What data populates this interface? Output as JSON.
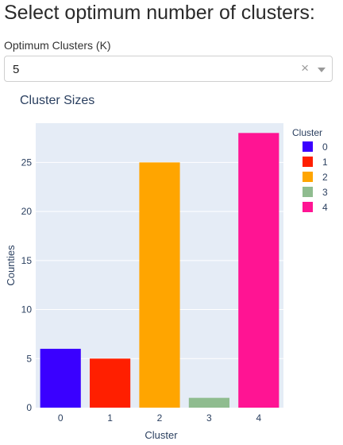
{
  "page": {
    "heading": "Select optimum number of clusters:"
  },
  "cluster_select": {
    "label": "Optimum Clusters (K)",
    "value": "5",
    "clear_glyph": "×"
  },
  "chart_data": {
    "type": "bar",
    "title": "Cluster Sizes",
    "xlabel": "Cluster",
    "ylabel": "Counties",
    "categories": [
      "0",
      "1",
      "2",
      "3",
      "4"
    ],
    "values": [
      6,
      5,
      25,
      1,
      28
    ],
    "colors": [
      "#3a00ff",
      "#ff1f00",
      "#ffa500",
      "#8fbc8f",
      "#ff1493"
    ],
    "yticks": [
      0,
      5,
      10,
      15,
      20,
      25
    ],
    "ylim": [
      0,
      29
    ],
    "grid": true,
    "plot_background": "#e5ecf6",
    "legend": {
      "title": "Cluster",
      "position": "right",
      "items": [
        "0",
        "1",
        "2",
        "3",
        "4"
      ]
    }
  }
}
